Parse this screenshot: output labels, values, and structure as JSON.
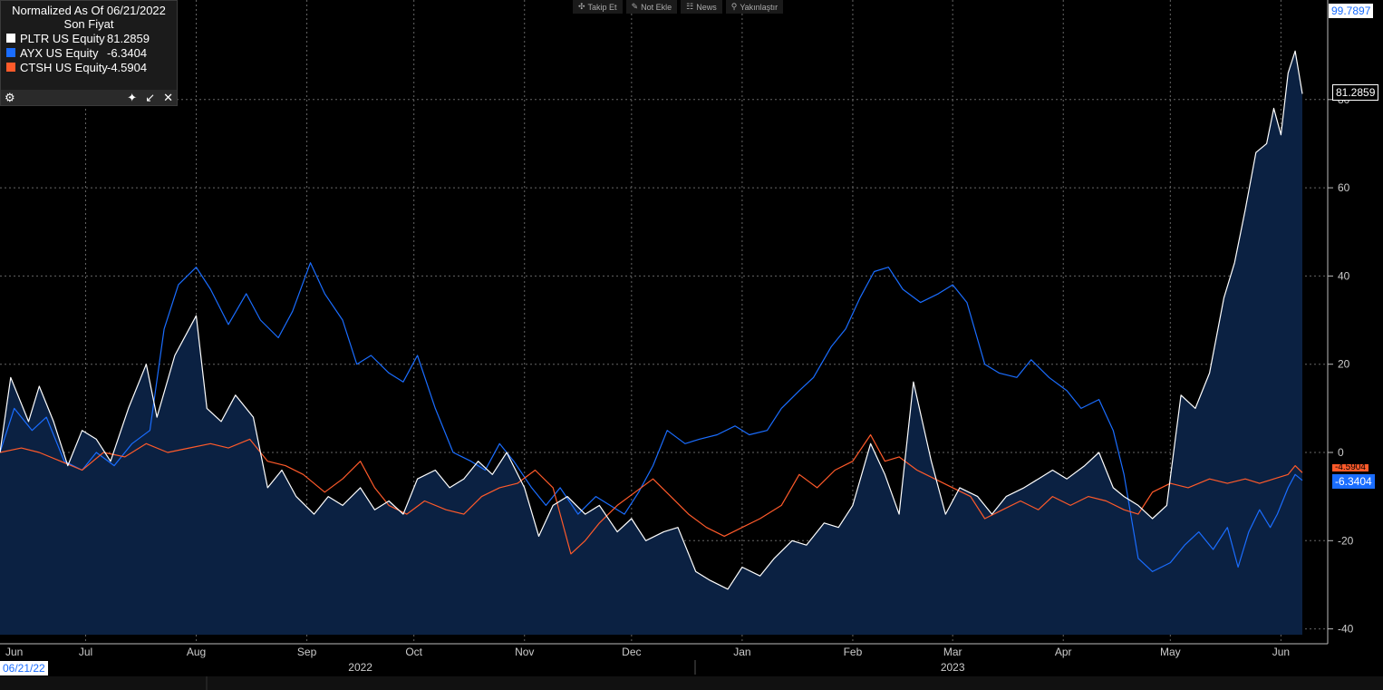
{
  "toolbar": {
    "follow": "Takip Et",
    "add_note": "Not Ekle",
    "news": "News",
    "zoom": "Yakınlaştır"
  },
  "legend": {
    "title": "Normalized As Of 06/21/2022",
    "subtitle": "Son Fiyat",
    "items": [
      {
        "name": "PLTR US Equity",
        "value": "81.2859",
        "color": "#ffffff"
      },
      {
        "name": "AYX US Equity",
        "value": "-6.3404",
        "color": "#1a6dff"
      },
      {
        "name": "CTSH US Equity",
        "value": "-4.5904",
        "color": "#ff5a2a"
      }
    ]
  },
  "badges": {
    "top_value": "99.7897",
    "pltr_last": "81.2859",
    "ctsh_last": "-4.5904",
    "ayx_last": "-6.3404"
  },
  "x_start_label": "06/21/22",
  "chart_data": {
    "type": "line",
    "title": "",
    "xlabel": "",
    "ylabel": "",
    "x_range": [
      "2022-06-21",
      "2023-06-21"
    ],
    "ylim": [
      -40,
      100
    ],
    "y_ticks": [
      -40,
      -20,
      0,
      20,
      40,
      60,
      80
    ],
    "grid": true,
    "legend_position": "top-left",
    "month_ticks": [
      {
        "label": "Jun",
        "date": "2022-06-21"
      },
      {
        "label": "Jul",
        "date": "2022-07-15"
      },
      {
        "label": "Aug",
        "date": "2022-08-15"
      },
      {
        "label": "Sep",
        "date": "2022-09-15"
      },
      {
        "label": "Oct",
        "date": "2022-10-15"
      },
      {
        "label": "Nov",
        "date": "2022-11-15"
      },
      {
        "label": "Dec",
        "date": "2022-12-15"
      },
      {
        "label": "Jan",
        "date": "2023-01-15"
      },
      {
        "label": "Feb",
        "date": "2023-02-15"
      },
      {
        "label": "Mar",
        "date": "2023-03-15"
      },
      {
        "label": "Apr",
        "date": "2023-04-15"
      },
      {
        "label": "May",
        "date": "2023-05-15"
      },
      {
        "label": "Jun",
        "date": "2023-06-15"
      }
    ],
    "year_labels": [
      {
        "label": "2022",
        "date": "2022-09-30"
      },
      {
        "label": "2023",
        "date": "2023-03-15"
      }
    ],
    "series": [
      {
        "name": "PLTR US Equity",
        "color": "#ffffff",
        "fill": true,
        "points": [
          [
            "2022-06-21",
            0
          ],
          [
            "2022-06-24",
            17
          ],
          [
            "2022-06-29",
            7
          ],
          [
            "2022-07-02",
            15
          ],
          [
            "2022-07-06",
            7
          ],
          [
            "2022-07-10",
            -3
          ],
          [
            "2022-07-14",
            5
          ],
          [
            "2022-07-18",
            3
          ],
          [
            "2022-07-22",
            -2
          ],
          [
            "2022-07-27",
            10
          ],
          [
            "2022-08-01",
            20
          ],
          [
            "2022-08-04",
            8
          ],
          [
            "2022-08-09",
            22
          ],
          [
            "2022-08-15",
            31
          ],
          [
            "2022-08-18",
            10
          ],
          [
            "2022-08-22",
            7
          ],
          [
            "2022-08-26",
            13
          ],
          [
            "2022-08-31",
            8
          ],
          [
            "2022-09-04",
            -8
          ],
          [
            "2022-09-08",
            -4
          ],
          [
            "2022-09-12",
            -10
          ],
          [
            "2022-09-17",
            -14
          ],
          [
            "2022-09-21",
            -10
          ],
          [
            "2022-09-25",
            -12
          ],
          [
            "2022-09-30",
            -8
          ],
          [
            "2022-10-04",
            -13
          ],
          [
            "2022-10-08",
            -11
          ],
          [
            "2022-10-12",
            -14
          ],
          [
            "2022-10-16",
            -6
          ],
          [
            "2022-10-21",
            -4
          ],
          [
            "2022-10-25",
            -8
          ],
          [
            "2022-10-29",
            -6
          ],
          [
            "2022-11-02",
            -2
          ],
          [
            "2022-11-06",
            -5
          ],
          [
            "2022-11-10",
            0
          ],
          [
            "2022-11-15",
            -8
          ],
          [
            "2022-11-19",
            -19
          ],
          [
            "2022-11-23",
            -12
          ],
          [
            "2022-11-27",
            -10
          ],
          [
            "2022-12-02",
            -14
          ],
          [
            "2022-12-06",
            -12
          ],
          [
            "2022-12-11",
            -18
          ],
          [
            "2022-12-15",
            -15
          ],
          [
            "2022-12-19",
            -20
          ],
          [
            "2022-12-24",
            -18
          ],
          [
            "2022-12-28",
            -17
          ],
          [
            "2023-01-02",
            -27
          ],
          [
            "2023-01-06",
            -29
          ],
          [
            "2023-01-11",
            -31
          ],
          [
            "2023-01-15",
            -26
          ],
          [
            "2023-01-20",
            -28
          ],
          [
            "2023-01-24",
            -24
          ],
          [
            "2023-01-29",
            -20
          ],
          [
            "2023-02-02",
            -21
          ],
          [
            "2023-02-07",
            -16
          ],
          [
            "2023-02-11",
            -17
          ],
          [
            "2023-02-15",
            -12
          ],
          [
            "2023-02-20",
            2
          ],
          [
            "2023-02-24",
            -5
          ],
          [
            "2023-02-28",
            -14
          ],
          [
            "2023-03-04",
            16
          ],
          [
            "2023-03-09",
            -2
          ],
          [
            "2023-03-13",
            -14
          ],
          [
            "2023-03-17",
            -8
          ],
          [
            "2023-03-22",
            -10
          ],
          [
            "2023-03-26",
            -14
          ],
          [
            "2023-03-30",
            -10
          ],
          [
            "2023-04-04",
            -8
          ],
          [
            "2023-04-08",
            -6
          ],
          [
            "2023-04-12",
            -4
          ],
          [
            "2023-04-16",
            -6
          ],
          [
            "2023-04-21",
            -3
          ],
          [
            "2023-04-25",
            0
          ],
          [
            "2023-04-29",
            -8
          ],
          [
            "2023-05-02",
            -10
          ],
          [
            "2023-05-06",
            -12
          ],
          [
            "2023-05-10",
            -15
          ],
          [
            "2023-05-14",
            -12
          ],
          [
            "2023-05-18",
            13
          ],
          [
            "2023-05-22",
            10
          ],
          [
            "2023-05-26",
            18
          ],
          [
            "2023-05-30",
            35
          ],
          [
            "2023-06-02",
            43
          ],
          [
            "2023-06-05",
            55
          ],
          [
            "2023-06-08",
            68
          ],
          [
            "2023-06-11",
            70
          ],
          [
            "2023-06-13",
            78
          ],
          [
            "2023-06-15",
            72
          ],
          [
            "2023-06-17",
            86
          ],
          [
            "2023-06-19",
            91
          ],
          [
            "2023-06-21",
            81.29
          ]
        ]
      },
      {
        "name": "AYX US Equity",
        "color": "#1a6dff",
        "fill": false,
        "points": [
          [
            "2022-06-21",
            0
          ],
          [
            "2022-06-25",
            10
          ],
          [
            "2022-06-30",
            5
          ],
          [
            "2022-07-04",
            8
          ],
          [
            "2022-07-09",
            -2
          ],
          [
            "2022-07-14",
            -4
          ],
          [
            "2022-07-18",
            0
          ],
          [
            "2022-07-23",
            -3
          ],
          [
            "2022-07-28",
            2
          ],
          [
            "2022-08-02",
            5
          ],
          [
            "2022-08-06",
            28
          ],
          [
            "2022-08-10",
            38
          ],
          [
            "2022-08-15",
            42
          ],
          [
            "2022-08-19",
            37
          ],
          [
            "2022-08-24",
            29
          ],
          [
            "2022-08-29",
            36
          ],
          [
            "2022-09-02",
            30
          ],
          [
            "2022-09-07",
            26
          ],
          [
            "2022-09-11",
            32
          ],
          [
            "2022-09-16",
            43
          ],
          [
            "2022-09-20",
            36
          ],
          [
            "2022-09-25",
            30
          ],
          [
            "2022-09-29",
            20
          ],
          [
            "2022-10-03",
            22
          ],
          [
            "2022-10-08",
            18
          ],
          [
            "2022-10-12",
            16
          ],
          [
            "2022-10-16",
            22
          ],
          [
            "2022-10-21",
            10
          ],
          [
            "2022-10-26",
            0
          ],
          [
            "2022-10-31",
            -2
          ],
          [
            "2022-11-04",
            -4
          ],
          [
            "2022-11-08",
            2
          ],
          [
            "2022-11-12",
            -2
          ],
          [
            "2022-11-17",
            -8
          ],
          [
            "2022-11-21",
            -12
          ],
          [
            "2022-11-25",
            -8
          ],
          [
            "2022-11-30",
            -14
          ],
          [
            "2022-12-05",
            -10
          ],
          [
            "2022-12-09",
            -12
          ],
          [
            "2022-12-13",
            -14
          ],
          [
            "2022-12-17",
            -9
          ],
          [
            "2022-12-21",
            -3
          ],
          [
            "2022-12-25",
            5
          ],
          [
            "2022-12-30",
            2
          ],
          [
            "2023-01-03",
            3
          ],
          [
            "2023-01-08",
            4
          ],
          [
            "2023-01-13",
            6
          ],
          [
            "2023-01-17",
            4
          ],
          [
            "2023-01-22",
            5
          ],
          [
            "2023-01-26",
            10
          ],
          [
            "2023-01-31",
            14
          ],
          [
            "2023-02-04",
            17
          ],
          [
            "2023-02-09",
            24
          ],
          [
            "2023-02-13",
            28
          ],
          [
            "2023-02-17",
            35
          ],
          [
            "2023-02-21",
            41
          ],
          [
            "2023-02-25",
            42
          ],
          [
            "2023-03-01",
            37
          ],
          [
            "2023-03-06",
            34
          ],
          [
            "2023-03-11",
            36
          ],
          [
            "2023-03-15",
            38
          ],
          [
            "2023-03-19",
            34
          ],
          [
            "2023-03-24",
            20
          ],
          [
            "2023-03-28",
            18
          ],
          [
            "2023-04-02",
            17
          ],
          [
            "2023-04-06",
            21
          ],
          [
            "2023-04-11",
            17
          ],
          [
            "2023-04-16",
            14
          ],
          [
            "2023-04-20",
            10
          ],
          [
            "2023-04-25",
            12
          ],
          [
            "2023-04-29",
            5
          ],
          [
            "2023-05-02",
            -5
          ],
          [
            "2023-05-06",
            -24
          ],
          [
            "2023-05-10",
            -27
          ],
          [
            "2023-05-15",
            -25
          ],
          [
            "2023-05-19",
            -21
          ],
          [
            "2023-05-23",
            -18
          ],
          [
            "2023-05-27",
            -22
          ],
          [
            "2023-05-31",
            -17
          ],
          [
            "2023-06-03",
            -26
          ],
          [
            "2023-06-06",
            -18
          ],
          [
            "2023-06-09",
            -13
          ],
          [
            "2023-06-12",
            -17
          ],
          [
            "2023-06-14",
            -14
          ],
          [
            "2023-06-17",
            -8
          ],
          [
            "2023-06-19",
            -5
          ],
          [
            "2023-06-21",
            -6.34
          ]
        ]
      },
      {
        "name": "CTSH US Equity",
        "color": "#ff5a2a",
        "fill": false,
        "points": [
          [
            "2022-06-21",
            0
          ],
          [
            "2022-06-27",
            1
          ],
          [
            "2022-07-02",
            0
          ],
          [
            "2022-07-08",
            -2
          ],
          [
            "2022-07-14",
            -4
          ],
          [
            "2022-07-20",
            0
          ],
          [
            "2022-07-26",
            -1
          ],
          [
            "2022-08-01",
            2
          ],
          [
            "2022-08-07",
            0
          ],
          [
            "2022-08-13",
            1
          ],
          [
            "2022-08-19",
            2
          ],
          [
            "2022-08-24",
            1
          ],
          [
            "2022-08-30",
            3
          ],
          [
            "2022-09-04",
            -2
          ],
          [
            "2022-09-09",
            -3
          ],
          [
            "2022-09-14",
            -5
          ],
          [
            "2022-09-20",
            -9
          ],
          [
            "2022-09-25",
            -6
          ],
          [
            "2022-09-30",
            -2
          ],
          [
            "2022-10-04",
            -8
          ],
          [
            "2022-10-08",
            -12
          ],
          [
            "2022-10-13",
            -14
          ],
          [
            "2022-10-18",
            -11
          ],
          [
            "2022-10-24",
            -13
          ],
          [
            "2022-10-29",
            -14
          ],
          [
            "2022-11-03",
            -10
          ],
          [
            "2022-11-08",
            -8
          ],
          [
            "2022-11-13",
            -7
          ],
          [
            "2022-11-18",
            -4
          ],
          [
            "2022-11-23",
            -8
          ],
          [
            "2022-11-28",
            -23
          ],
          [
            "2022-12-02",
            -20
          ],
          [
            "2022-12-06",
            -16
          ],
          [
            "2022-12-11",
            -12
          ],
          [
            "2022-12-16",
            -9
          ],
          [
            "2022-12-21",
            -6
          ],
          [
            "2022-12-26",
            -10
          ],
          [
            "2022-12-31",
            -14
          ],
          [
            "2023-01-05",
            -17
          ],
          [
            "2023-01-10",
            -19
          ],
          [
            "2023-01-15",
            -17
          ],
          [
            "2023-01-20",
            -15
          ],
          [
            "2023-01-26",
            -12
          ],
          [
            "2023-01-31",
            -5
          ],
          [
            "2023-02-05",
            -8
          ],
          [
            "2023-02-10",
            -4
          ],
          [
            "2023-02-15",
            -2
          ],
          [
            "2023-02-20",
            4
          ],
          [
            "2023-02-24",
            -2
          ],
          [
            "2023-02-28",
            -1
          ],
          [
            "2023-03-05",
            -4
          ],
          [
            "2023-03-10",
            -6
          ],
          [
            "2023-03-15",
            -8
          ],
          [
            "2023-03-20",
            -10
          ],
          [
            "2023-03-24",
            -15
          ],
          [
            "2023-03-29",
            -13
          ],
          [
            "2023-04-03",
            -11
          ],
          [
            "2023-04-08",
            -13
          ],
          [
            "2023-04-12",
            -10
          ],
          [
            "2023-04-17",
            -12
          ],
          [
            "2023-04-22",
            -10
          ],
          [
            "2023-04-27",
            -11
          ],
          [
            "2023-05-02",
            -13
          ],
          [
            "2023-05-06",
            -14
          ],
          [
            "2023-05-10",
            -9
          ],
          [
            "2023-05-15",
            -7
          ],
          [
            "2023-05-20",
            -8
          ],
          [
            "2023-05-26",
            -6
          ],
          [
            "2023-05-31",
            -7
          ],
          [
            "2023-06-05",
            -6
          ],
          [
            "2023-06-09",
            -7
          ],
          [
            "2023-06-13",
            -6
          ],
          [
            "2023-06-17",
            -5
          ],
          [
            "2023-06-19",
            -3
          ],
          [
            "2023-06-21",
            -4.59
          ]
        ]
      }
    ]
  }
}
